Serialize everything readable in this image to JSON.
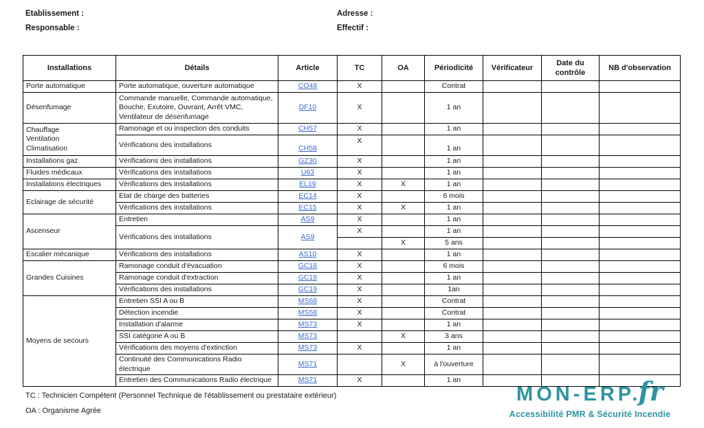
{
  "header": {
    "etablissement_label": "Etablissement :",
    "responsable_label": "Responsable :",
    "adresse_label": "Adresse :",
    "effectif_label": "Effectif :"
  },
  "table": {
    "columns": [
      "Installations",
      "Détails",
      "Article",
      "TC",
      "OA",
      "Périodicité",
      "Vérificateur",
      "Date du contrôle",
      "NB d'observation"
    ],
    "groups": [
      {
        "installation": "Porte automatique",
        "rows": [
          {
            "details": "Porte automatique, ouverture automatique",
            "article": "CO48",
            "tc": "X",
            "oa": "",
            "periodicite": "Contrat"
          }
        ]
      },
      {
        "installation": "Désenfumage",
        "rows": [
          {
            "details": "Commande manuelle, Commande automatique, Bouche, Exutoire, Ouvrant, Arrêt VMC, Ventilateur de désenfumage",
            "article": "DF10",
            "tc": "X",
            "oa": "",
            "periodicite": "1 an"
          }
        ]
      },
      {
        "installation": "Chauffage\nVentilation\nClimatisation",
        "rows": [
          {
            "details": "Ramonage et ou inspection des conduits",
            "article": "CH57",
            "tc": "X",
            "oa": "",
            "periodicite": "1 an"
          },
          {
            "details": "Vérifications des installations",
            "article": "CH58",
            "tc": "X",
            "oa": "",
            "periodicite": "1 an"
          }
        ]
      },
      {
        "installation": "Installations gaz",
        "rows": [
          {
            "details": "Vérifications des installations",
            "article": "GZ30",
            "tc": "X",
            "oa": "",
            "periodicite": "1 an"
          }
        ]
      },
      {
        "installation": "Fluides médicaux",
        "rows": [
          {
            "details": "Vérifications des installations",
            "article": "U63",
            "tc": "X",
            "oa": "",
            "periodicite": "1 an"
          }
        ]
      },
      {
        "installation": "Installations électriques",
        "rows": [
          {
            "details": "Vérifications des installations",
            "article": "EL19",
            "tc": "X",
            "oa": "X",
            "periodicite": "1 an"
          }
        ]
      },
      {
        "installation": "Eclairage de sécurité",
        "rows": [
          {
            "details": "Etat de charge des batteries",
            "article": "EC14",
            "tc": "X",
            "oa": "",
            "periodicite": "6 mois"
          },
          {
            "details": "Vérifications des installations",
            "article": "EC15",
            "tc": "X",
            "oa": "X",
            "periodicite": "1 an"
          }
        ]
      },
      {
        "installation": "Ascenseur",
        "rows": [
          {
            "details": "Entretien",
            "article": "AS9",
            "tc": "X",
            "oa": "",
            "periodicite": "1 an"
          },
          {
            "details": "Vérifications des installations",
            "article": "AS9",
            "subrows": [
              {
                "tc": "X",
                "oa": "",
                "periodicite": "1 an"
              },
              {
                "tc": "",
                "oa": "X",
                "periodicite": "5 ans"
              }
            ]
          }
        ]
      },
      {
        "installation": "Escalier mécanique",
        "rows": [
          {
            "details": "Vérifications des installations",
            "article": "AS10",
            "tc": "X",
            "oa": "",
            "periodicite": "1 an"
          }
        ]
      },
      {
        "installation": "Grandes Cuisines",
        "rows": [
          {
            "details": "Ramonage conduit d'évacuation",
            "article": "GC18",
            "tc": "X",
            "oa": "",
            "periodicite": "6 mois"
          },
          {
            "details": "Ramonage conduit d'extraction",
            "article": "GC18",
            "tc": "X",
            "oa": "",
            "periodicite": "1 an"
          },
          {
            "details": "Vérifications des installations",
            "article": "GC19",
            "tc": "X",
            "oa": "",
            "periodicite": "1an"
          }
        ]
      },
      {
        "installation": "Moyens de secours",
        "rows": [
          {
            "details": "Entretien SSI A ou B",
            "article": "MS68",
            "tc": "X",
            "oa": "",
            "periodicite": "Contrat"
          },
          {
            "details": "Détection incendie",
            "article": "MS58",
            "tc": "X",
            "oa": "",
            "periodicite": "Contrat"
          },
          {
            "details": "Installation d'alarme",
            "article": "MS73",
            "tc": "X",
            "oa": "",
            "periodicite": "1 an"
          },
          {
            "details": "SSI catégorie A ou B",
            "article": "MS73",
            "tc": "",
            "oa": "X",
            "periodicite": "3 ans"
          },
          {
            "details": "Vérifications des moyens d'extinction",
            "article": "MS73",
            "tc": "X",
            "oa": "",
            "periodicite": "1 an"
          },
          {
            "details": "Continuité des Communications Radio électrique",
            "article": "MS71",
            "tc": "",
            "oa": "X",
            "periodicite": "à l'ouverture"
          },
          {
            "details": "Entretien des Communications Radio électrique",
            "article": "MS71",
            "tc": "X",
            "oa": "",
            "periodicite": "1 an"
          }
        ]
      }
    ]
  },
  "footer": {
    "tc_legend": "TC : Technicien Compétent (Personnel Technique de l'établissement ou prestataire extérieur)",
    "oa_legend": "OA : Organisme Agrée"
  },
  "logo": {
    "name": "MON-ERP.",
    "fr": "fr",
    "tagline": "Accessibilité PMR & Sécurité Incendie",
    "accent_color": "#2e93a0",
    "link_color": "#3b6ad0"
  }
}
